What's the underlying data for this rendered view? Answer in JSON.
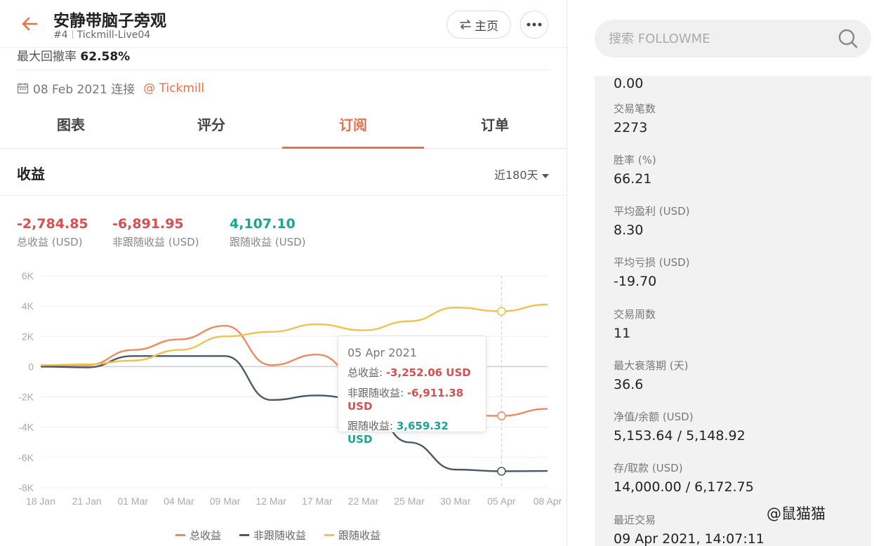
{
  "header": {
    "title": "安静带脑子旁观",
    "rank": "#4",
    "account": "Tickmill-Live04",
    "home_label": "主页"
  },
  "max_drawdown": {
    "label": "最大回撤率",
    "value": "62.58%"
  },
  "connect": {
    "date_text": "08 Feb 2021 连接",
    "broker": "@ Tickmill"
  },
  "tabs": [
    "图表",
    "评分",
    "订阅",
    "订单"
  ],
  "active_tab": 2,
  "section": {
    "title": "收益",
    "period": "近180天"
  },
  "kpis": [
    {
      "value": "-2,784.85",
      "label": "总收益 (USD)",
      "color": "red"
    },
    {
      "value": "-6,891.95",
      "label": "非跟随收益 (USD)",
      "color": "red"
    },
    {
      "value": "4,107.10",
      "label": "跟随收益 (USD)",
      "color": "green"
    }
  ],
  "tooltip": {
    "date": "05 Apr 2021",
    "rows": [
      {
        "label": "总收益: ",
        "value": "-3,252.06 USD"
      },
      {
        "label": "非跟随收益: ",
        "value": "-6,911.38 USD"
      },
      {
        "label": "跟随收益: ",
        "value": "3,659.32 USD"
      }
    ]
  },
  "chart_data": {
    "type": "line",
    "x": [
      "18 Jan",
      "21 Jan",
      "01 Mar",
      "04 Mar",
      "09 Mar",
      "12 Mar",
      "17 Mar",
      "22 Mar",
      "25 Mar",
      "30 Mar",
      "05 Apr",
      "08 Apr"
    ],
    "x_ticks": [
      "18 Jan",
      "21 Jan",
      "01 Mar",
      "04 Mar",
      "09 Mar",
      "12 Mar",
      "17 Mar",
      "22 Mar",
      "25 Mar",
      "30 Mar",
      "05 Apr",
      "08 Apr"
    ],
    "y_ticks": [
      "6K",
      "4K",
      "2K",
      "0",
      "-2K",
      "-4K",
      "-6K",
      "-8K"
    ],
    "ylim": [
      -8000,
      6000
    ],
    "series": [
      {
        "name": "总收益",
        "color": "#ef8a5f",
        "values": [
          0,
          100,
          1100,
          1800,
          2700,
          100,
          800,
          -1000,
          -2800,
          -3200,
          -3252,
          -2785
        ]
      },
      {
        "name": "非跟随收益",
        "color": "#4a5867",
        "values": [
          0,
          -50,
          700,
          700,
          700,
          -2200,
          -1900,
          -2200,
          -5000,
          -6800,
          -6911,
          -6892
        ]
      },
      {
        "name": "跟随收益",
        "color": "#f0c24b",
        "values": [
          100,
          150,
          400,
          1100,
          2000,
          2300,
          2800,
          2400,
          3000,
          3900,
          3659,
          4107
        ]
      }
    ],
    "highlight_index": 10
  },
  "stats": [
    {
      "label": "",
      "value": "0.00"
    },
    {
      "label": "交易笔数",
      "value": "2273"
    },
    {
      "label": "胜率 (%)",
      "value": "66.21"
    },
    {
      "label": "平均盈利 (USD)",
      "value": "8.30"
    },
    {
      "label": "平均亏损 (USD)",
      "value": "-19.70"
    },
    {
      "label": "交易周数",
      "value": "11"
    },
    {
      "label": "最大衰落期 (天)",
      "value": "36.6"
    },
    {
      "label": "净值/余额 (USD)",
      "value": "5,153.64 / 5,148.92"
    },
    {
      "label": "存/取款 (USD)",
      "value": "14,000.00 / 6,172.75"
    },
    {
      "label": "最近交易",
      "value": "09 Apr 2021, 14:07:11"
    }
  ],
  "search": {
    "placeholder": "搜索 FOLLOWME"
  },
  "watermark": "@鼠猫猫"
}
